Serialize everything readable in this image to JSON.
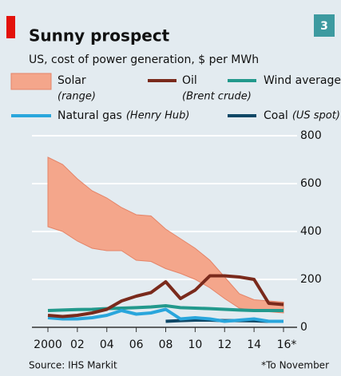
{
  "badge": "3",
  "chart_data": {
    "type": "line",
    "title": "Sunny prospect",
    "subtitle": "US, cost of power generation, $ per MWh",
    "source": "Source: IHS Markit",
    "footnote": "*To November",
    "x": [
      2000,
      2001,
      2002,
      2003,
      2004,
      2005,
      2006,
      2007,
      2008,
      2009,
      2010,
      2011,
      2012,
      2013,
      2014,
      2015,
      2016
    ],
    "xlim": [
      2000,
      2016
    ],
    "xticks": [
      2000,
      {
        "value": 2002,
        "label": "02"
      },
      {
        "value": 2004,
        "label": "04"
      },
      {
        "value": 2006,
        "label": "06"
      },
      {
        "value": 2008,
        "label": "08"
      },
      {
        "value": 2010,
        "label": "10"
      },
      {
        "value": 2012,
        "label": "12"
      },
      {
        "value": 2014,
        "label": "14"
      },
      {
        "value": 2016,
        "label": "16*"
      }
    ],
    "ylim": [
      0,
      800
    ],
    "yticks": [
      0,
      200,
      400,
      600,
      800
    ],
    "grid": true,
    "solar": {
      "name": "Solar",
      "sublabel": "(range)",
      "color": "#f4a68b",
      "edge": "#e48468",
      "high": [
        710,
        680,
        620,
        570,
        540,
        500,
        470,
        465,
        410,
        370,
        330,
        280,
        210,
        140,
        115,
        110,
        105
      ],
      "low": [
        420,
        400,
        360,
        330,
        320,
        320,
        280,
        275,
        245,
        225,
        200,
        165,
        120,
        80,
        70,
        65,
        60
      ]
    },
    "series": [
      {
        "name": "Oil",
        "sublabel": "(Brent crude)",
        "color": "#7a2a1c",
        "values": [
          50,
          45,
          50,
          60,
          75,
          110,
          130,
          145,
          190,
          120,
          155,
          215,
          215,
          210,
          200,
          100,
          95
        ]
      },
      {
        "name": "Wind average",
        "color": "#22998c",
        "values": [
          70,
          72,
          74,
          75,
          78,
          80,
          82,
          85,
          90,
          82,
          80,
          78,
          75,
          72,
          70,
          70,
          70
        ]
      },
      {
        "name": "Natural gas",
        "sublabel": "(Henry Hub)",
        "color": "#2aa6dc",
        "values": [
          40,
          35,
          35,
          40,
          50,
          70,
          55,
          60,
          75,
          35,
          40,
          35,
          25,
          30,
          35,
          25,
          25
        ]
      },
      {
        "name": "Coal",
        "sublabel": "(US spot)",
        "color": "#0e4766",
        "values": [
          null,
          null,
          null,
          null,
          null,
          null,
          null,
          null,
          25,
          28,
          30,
          30,
          28,
          28,
          27,
          25,
          25
        ]
      }
    ]
  }
}
